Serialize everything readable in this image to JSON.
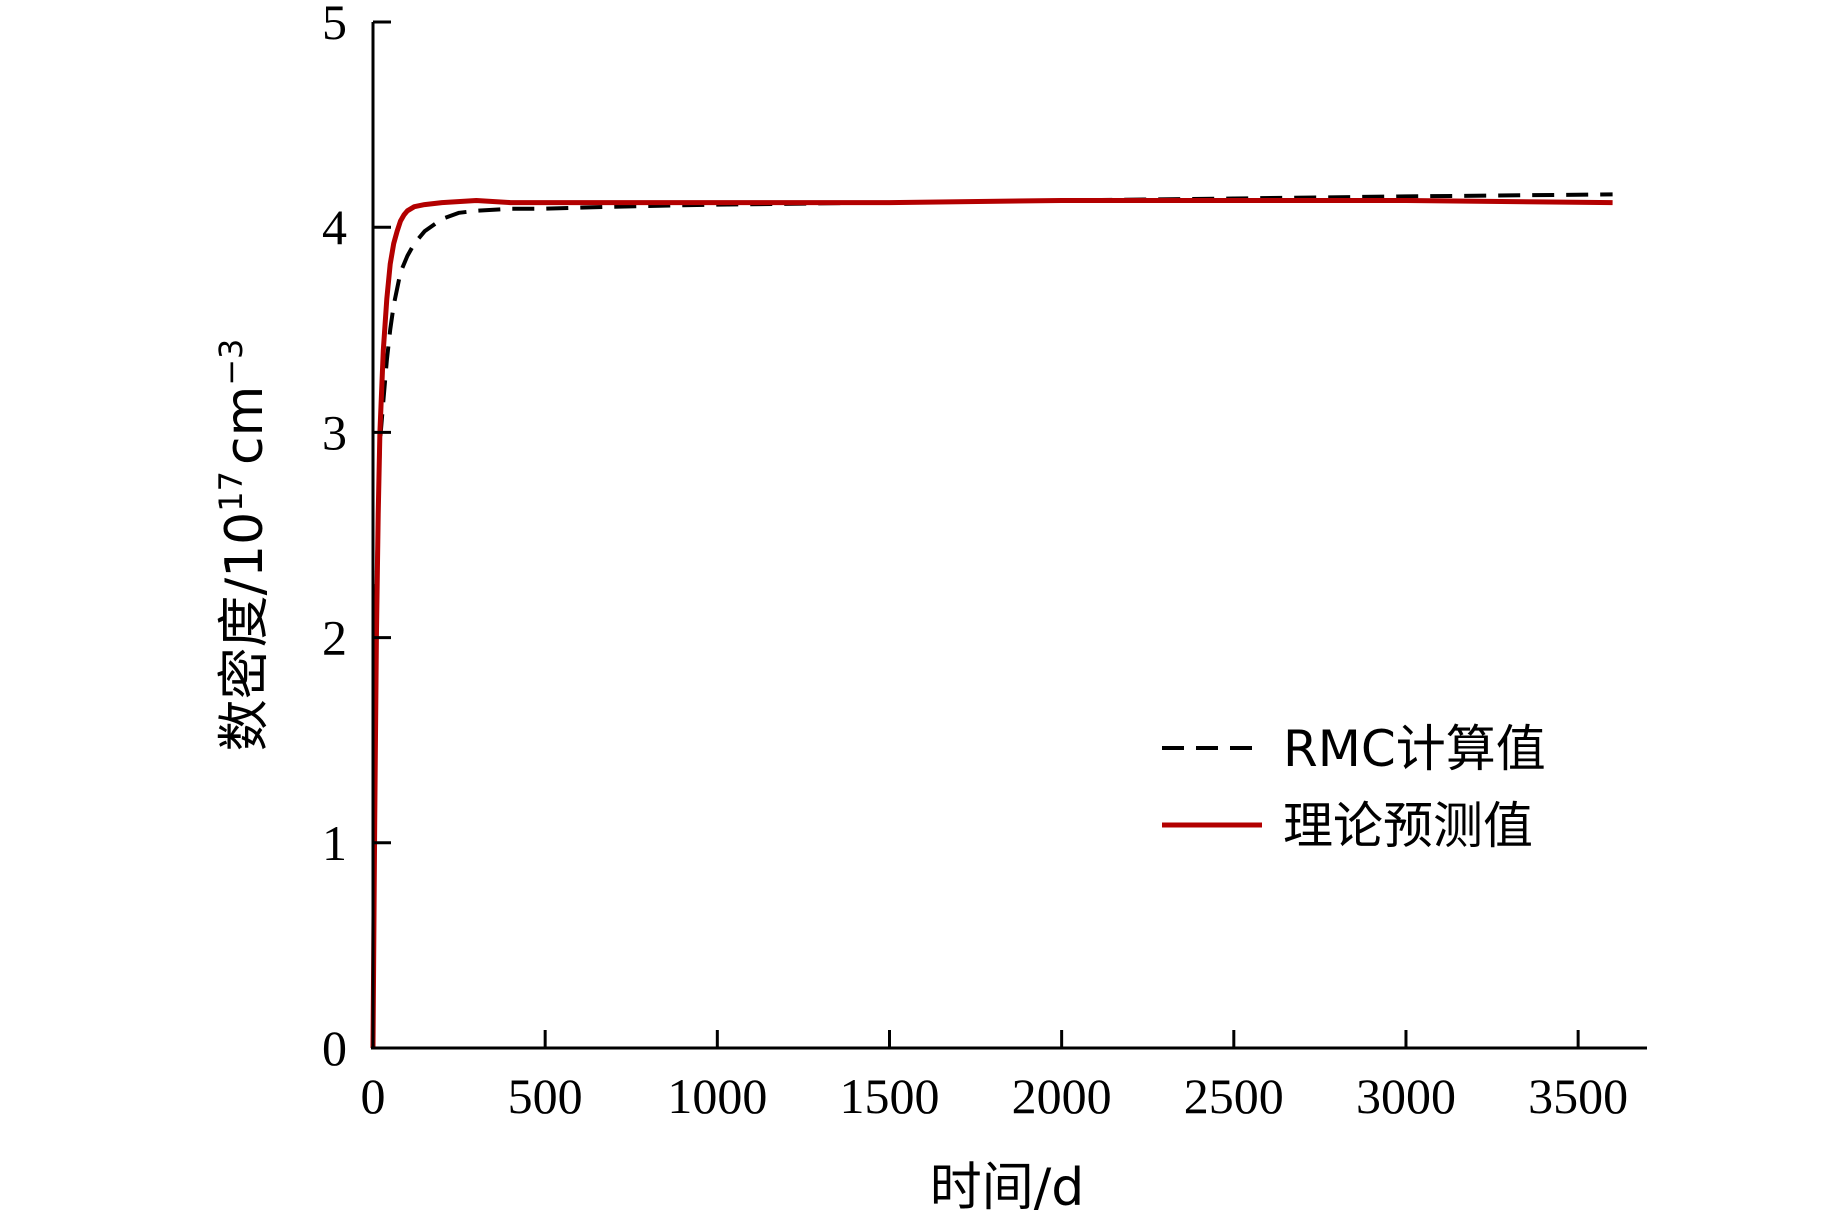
{
  "chart_data": {
    "type": "line",
    "title": "",
    "xlabel": "时间/d",
    "ylabel": {
      "main": "数密度/10",
      "exp": "17",
      "unit": "cm",
      "unit_exp": "−3"
    },
    "xlim": [
      0,
      3700
    ],
    "ylim": [
      0,
      5
    ],
    "xticks": [
      0,
      500,
      1000,
      1500,
      2000,
      2500,
      3000,
      3500
    ],
    "yticks": [
      0,
      1,
      2,
      3,
      4,
      5
    ],
    "grid": false,
    "legend_position": "right",
    "series": [
      {
        "name": "RMC计算值",
        "color": "#000000",
        "style": "dashed",
        "x": [
          0,
          5,
          10,
          20,
          30,
          40,
          50,
          60,
          70,
          80,
          100,
          120,
          150,
          200,
          250,
          300,
          400,
          500,
          700,
          1000,
          1500,
          2000,
          2500,
          3000,
          3600
        ],
        "y": [
          0,
          1.2,
          2.2,
          2.95,
          3.15,
          3.35,
          3.5,
          3.62,
          3.7,
          3.78,
          3.86,
          3.92,
          3.98,
          4.04,
          4.07,
          4.08,
          4.09,
          4.09,
          4.1,
          4.11,
          4.12,
          4.13,
          4.14,
          4.15,
          4.16
        ]
      },
      {
        "name": "理论预测值",
        "color": "#b30000",
        "style": "solid",
        "x": [
          0,
          5,
          10,
          15,
          20,
          30,
          40,
          50,
          60,
          70,
          80,
          90,
          100,
          120,
          150,
          200,
          300,
          400,
          500,
          700,
          1000,
          1500,
          2000,
          2500,
          3000,
          3600
        ],
        "y": [
          0,
          1.1,
          2.0,
          2.6,
          3.0,
          3.4,
          3.65,
          3.82,
          3.92,
          3.98,
          4.03,
          4.06,
          4.08,
          4.1,
          4.11,
          4.12,
          4.13,
          4.12,
          4.12,
          4.12,
          4.12,
          4.12,
          4.13,
          4.13,
          4.13,
          4.12
        ]
      }
    ]
  }
}
